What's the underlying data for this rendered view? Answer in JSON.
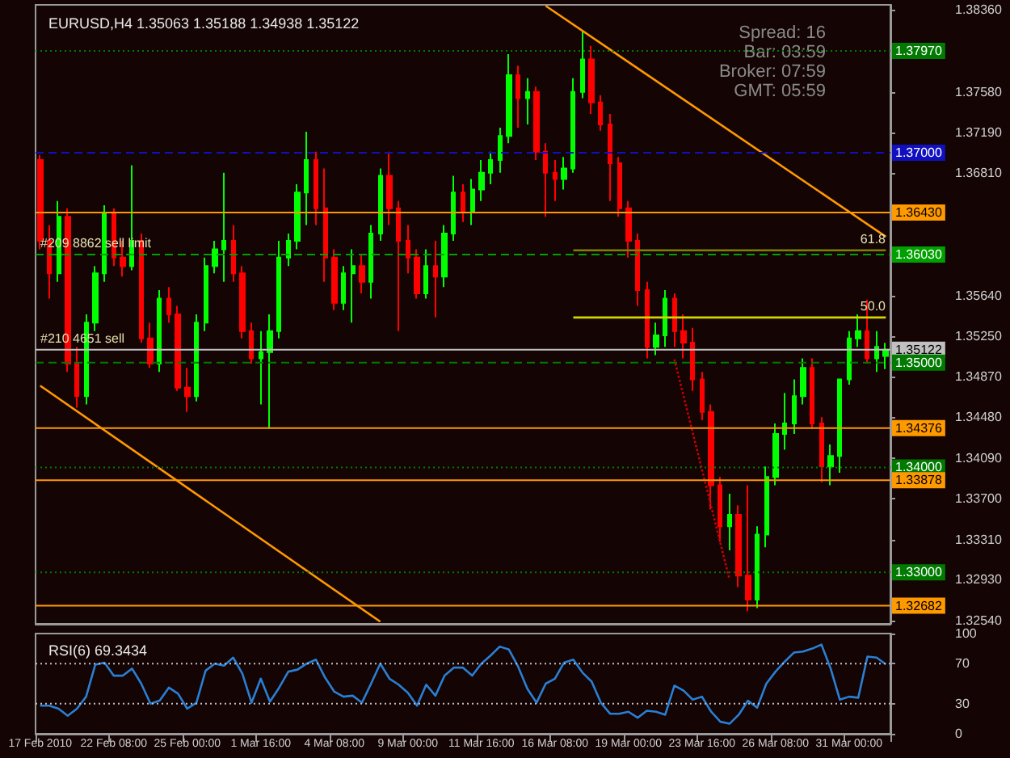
{
  "chart_data": [
    {
      "type": "candlestick",
      "title": "EURUSD,H4 1.35063 1.35188 1.34938 1.35122",
      "categories": [
        "17 Feb 2010",
        null,
        null,
        null,
        null,
        null,
        null,
        null,
        "22 Feb 08:00",
        null,
        null,
        null,
        null,
        null,
        null,
        null,
        "25 Feb 00:00",
        null,
        null,
        null,
        null,
        null,
        null,
        null,
        "1 Mar 16:00",
        null,
        null,
        null,
        null,
        null,
        null,
        null,
        "4 Mar 08:00",
        null,
        null,
        null,
        null,
        null,
        null,
        null,
        "9 Mar 00:00",
        null,
        null,
        null,
        null,
        null,
        null,
        null,
        "11 Mar 16:00",
        null,
        null,
        null,
        null,
        null,
        null,
        null,
        "16 Mar 08:00",
        null,
        null,
        null,
        null,
        null,
        null,
        null,
        "19 Mar 00:00",
        null,
        null,
        null,
        null,
        null,
        null,
        null,
        "23 Mar 16:00",
        null,
        null,
        null,
        null,
        null,
        null,
        null,
        "26 Mar 08:00",
        null,
        null,
        null,
        null,
        null,
        null,
        null,
        "31 Mar 00:00",
        null,
        null,
        null,
        null
      ],
      "ohlc": [
        [
          1.3693,
          1.3698,
          1.3608,
          1.3616
        ],
        [
          1.3616,
          1.3631,
          1.3561,
          1.3585
        ],
        [
          1.3585,
          1.3654,
          1.3577,
          1.3639
        ],
        [
          1.3639,
          1.3647,
          1.3491,
          1.3499
        ],
        [
          1.3499,
          1.3515,
          1.3457,
          1.3468
        ],
        [
          1.3468,
          1.3546,
          1.346,
          1.3538
        ],
        [
          1.3538,
          1.3592,
          1.353,
          1.3585
        ],
        [
          1.3585,
          1.365,
          1.3577,
          1.3642
        ],
        [
          1.3642,
          1.3647,
          1.3592,
          1.36
        ],
        [
          1.36,
          1.3616,
          1.3582,
          1.3592
        ],
        [
          1.3592,
          1.3688,
          1.3588,
          1.3616
        ],
        [
          1.3616,
          1.3623,
          1.3519,
          1.3523
        ],
        [
          1.3523,
          1.3538,
          1.3495,
          1.3499
        ],
        [
          1.3499,
          1.3569,
          1.3491,
          1.3561
        ],
        [
          1.3561,
          1.3572,
          1.3538,
          1.3546
        ],
        [
          1.3546,
          1.3554,
          1.3473,
          1.3476
        ],
        [
          1.3476,
          1.3495,
          1.3453,
          1.3468
        ],
        [
          1.3468,
          1.3546,
          1.3463,
          1.3538
        ],
        [
          1.3538,
          1.36,
          1.353,
          1.3592
        ],
        [
          1.3592,
          1.3616,
          1.3585,
          1.3608
        ],
        [
          1.3608,
          1.3681,
          1.3577,
          1.3616
        ],
        [
          1.3616,
          1.3631,
          1.3577,
          1.3585
        ],
        [
          1.3585,
          1.3592,
          1.3523,
          1.353
        ],
        [
          1.353,
          1.3538,
          1.3499,
          1.3504
        ],
        [
          1.3504,
          1.353,
          1.346,
          1.351
        ],
        [
          1.351,
          1.3546,
          1.3437,
          1.353
        ],
        [
          1.353,
          1.3616,
          1.3523,
          1.36
        ],
        [
          1.36,
          1.3623,
          1.3592,
          1.3616
        ],
        [
          1.3616,
          1.367,
          1.3608,
          1.3662
        ],
        [
          1.3662,
          1.372,
          1.3631,
          1.3693
        ],
        [
          1.3693,
          1.3701,
          1.3631,
          1.3647
        ],
        [
          1.3647,
          1.3685,
          1.3577,
          1.36
        ],
        [
          1.36,
          1.3608,
          1.355,
          1.3557
        ],
        [
          1.3557,
          1.3592,
          1.355,
          1.3585
        ],
        [
          1.3585,
          1.3608,
          1.3538,
          1.3592
        ],
        [
          1.3592,
          1.3603,
          1.3566,
          1.3577
        ],
        [
          1.3577,
          1.3631,
          1.3561,
          1.3623
        ],
        [
          1.3623,
          1.3685,
          1.3616,
          1.3678
        ],
        [
          1.3678,
          1.3701,
          1.3631,
          1.3647
        ],
        [
          1.3647,
          1.3654,
          1.353,
          1.3616
        ],
        [
          1.3616,
          1.3631,
          1.3585,
          1.36
        ],
        [
          1.36,
          1.3608,
          1.3561,
          1.3566
        ],
        [
          1.3566,
          1.3608,
          1.3561,
          1.3592
        ],
        [
          1.3592,
          1.3616,
          1.3543,
          1.3582
        ],
        [
          1.3582,
          1.3631,
          1.3572,
          1.3623
        ],
        [
          1.3623,
          1.3678,
          1.3616,
          1.3662
        ],
        [
          1.3662,
          1.367,
          1.3634,
          1.3644
        ],
        [
          1.3644,
          1.3675,
          1.3631,
          1.3665
        ],
        [
          1.3665,
          1.3693,
          1.3654,
          1.3681
        ],
        [
          1.3681,
          1.3701,
          1.367,
          1.3693
        ],
        [
          1.3693,
          1.3724,
          1.3681,
          1.3716
        ],
        [
          1.3716,
          1.3794,
          1.3709,
          1.3774
        ],
        [
          1.3774,
          1.3783,
          1.3724,
          1.3752
        ],
        [
          1.3752,
          1.3771,
          1.3727,
          1.3758
        ],
        [
          1.3758,
          1.3763,
          1.3693,
          1.3701
        ],
        [
          1.3701,
          1.3709,
          1.3639,
          1.3681
        ],
        [
          1.3681,
          1.3693,
          1.3654,
          1.3675
        ],
        [
          1.3675,
          1.3696,
          1.3665,
          1.3685
        ],
        [
          1.3685,
          1.3771,
          1.3681,
          1.3758
        ],
        [
          1.3758,
          1.3817,
          1.3752,
          1.3789
        ],
        [
          1.3789,
          1.3802,
          1.3737,
          1.3748
        ],
        [
          1.3748,
          1.3755,
          1.3721,
          1.3727
        ],
        [
          1.3727,
          1.3737,
          1.3654,
          1.369
        ],
        [
          1.369,
          1.3696,
          1.3639,
          1.3647
        ],
        [
          1.3647,
          1.3654,
          1.36,
          1.3616
        ],
        [
          1.3616,
          1.3623,
          1.3554,
          1.3569
        ],
        [
          1.3569,
          1.3577,
          1.3504,
          1.3515
        ],
        [
          1.3515,
          1.3538,
          1.3507,
          1.3526
        ],
        [
          1.3526,
          1.3569,
          1.3515,
          1.3561
        ],
        [
          1.3561,
          1.3566,
          1.3515,
          1.353
        ],
        [
          1.353,
          1.3546,
          1.3504,
          1.3519
        ],
        [
          1.3519,
          1.3533,
          1.3473,
          1.3484
        ],
        [
          1.3484,
          1.3491,
          1.3445,
          1.3453
        ],
        [
          1.3453,
          1.346,
          1.336,
          1.3383
        ],
        [
          1.3383,
          1.3391,
          1.3329,
          1.3344
        ],
        [
          1.3344,
          1.3375,
          1.3321,
          1.3355
        ],
        [
          1.3355,
          1.3364,
          1.3286,
          1.3297
        ],
        [
          1.3297,
          1.3383,
          1.3263,
          1.3274
        ],
        [
          1.3274,
          1.3344,
          1.3266,
          1.3336
        ],
        [
          1.3336,
          1.3401,
          1.3324,
          1.3391
        ],
        [
          1.3391,
          1.3442,
          1.3383,
          1.3432
        ],
        [
          1.3432,
          1.3471,
          1.3417,
          1.3442
        ],
        [
          1.3442,
          1.3484,
          1.3432,
          1.3468
        ],
        [
          1.3468,
          1.3504,
          1.346,
          1.3495
        ],
        [
          1.3495,
          1.3504,
          1.3437,
          1.3442
        ],
        [
          1.3442,
          1.3448,
          1.3386,
          1.3401
        ],
        [
          1.3401,
          1.3422,
          1.3383,
          1.3411
        ],
        [
          1.3411,
          1.3484,
          1.3395,
          1.3484
        ],
        [
          1.3484,
          1.353,
          1.3479,
          1.3523
        ],
        [
          1.3523,
          1.3546,
          1.3515,
          1.353
        ],
        [
          1.353,
          1.356,
          1.3499,
          1.3504
        ],
        [
          1.3504,
          1.353,
          1.3491,
          1.3515
        ],
        [
          1.35063,
          1.35188,
          1.34938,
          1.35122
        ]
      ],
      "colors": [
        "#ff0000",
        "#ff0000",
        "#00ff00",
        "#ff0000",
        "#ff0000",
        "#00ff00",
        "#00ff00",
        "#00ff00",
        "#ff0000",
        "#ff0000",
        "#00ff00",
        "#ff0000",
        "#ff0000",
        "#00ff00",
        "#ff0000",
        "#ff0000",
        "#ff0000",
        "#00ff00",
        "#00ff00",
        "#00ff00",
        "#00ff00",
        "#ff0000",
        "#ff0000",
        "#ff0000",
        "#00ff00",
        "#00ff00",
        "#00ff00",
        "#00ff00",
        "#00ff00",
        "#00ff00",
        "#ff0000",
        "#ff0000",
        "#ff0000",
        "#00ff00",
        "#00ff00",
        "#ff0000",
        "#00ff00",
        "#00ff00",
        "#ff0000",
        "#ff0000",
        "#ff0000",
        "#ff0000",
        "#00ff00",
        "#ff0000",
        "#00ff00",
        "#00ff00",
        "#ff0000",
        "#00ff00",
        "#00ff00",
        "#00ff00",
        "#00ff00",
        "#00ff00",
        "#ff0000",
        "#00ff00",
        "#ff0000",
        "#ff0000",
        "#ff0000",
        "#00ff00",
        "#00ff00",
        "#00ff00",
        "#ff0000",
        "#ff0000",
        "#ff0000",
        "#ff0000",
        "#ff0000",
        "#ff0000",
        "#ff0000",
        "#00ff00",
        "#00ff00",
        "#ff0000",
        "#ff0000",
        "#ff0000",
        "#ff0000",
        "#ff0000",
        "#ff0000",
        "#00ff00",
        "#ff0000",
        "#ff0000",
        "#00ff00",
        "#00ff00",
        "#00ff00",
        "#00ff00",
        "#00ff00",
        "#00ff00",
        "#ff0000",
        "#ff0000",
        "#00ff00",
        "#00ff00",
        "#00ff00",
        "#00ff00",
        "#ff0000",
        "#00ff00",
        "#00ff00"
      ],
      "series": [
        {
          "type": "line",
          "color": "#ff9900",
          "values": [
            null,
            null,
            null,
            null,
            null,
            null,
            null,
            null,
            null,
            null,
            null,
            null,
            null,
            null,
            null,
            null,
            null,
            null,
            null,
            null,
            null,
            null,
            null,
            null,
            null,
            null,
            null,
            null,
            null,
            null,
            null,
            null,
            null,
            null,
            null,
            null,
            null,
            null,
            null,
            null,
            null,
            null,
            null,
            null,
            null,
            null,
            null,
            null,
            null,
            null,
            null,
            null,
            null,
            null,
            null,
            1.384,
            null,
            null,
            null,
            null,
            null,
            null,
            null,
            null,
            null,
            null,
            null,
            null,
            null,
            null,
            null,
            null,
            null,
            null,
            null,
            null,
            null,
            null,
            null,
            null,
            null,
            null,
            null,
            null,
            null,
            null,
            null,
            null,
            null,
            null,
            null,
            null,
            1.362
          ]
        },
        {
          "type": "line",
          "color": "#ff9900",
          "values": [
            1.3478,
            null,
            null,
            null,
            null,
            null,
            null,
            null,
            null,
            null,
            null,
            null,
            null,
            null,
            null,
            null,
            null,
            null,
            null,
            null,
            null,
            null,
            null,
            null,
            null,
            null,
            null,
            null,
            null,
            null,
            null,
            null,
            null,
            null,
            null,
            null,
            null,
            1.3253,
            null,
            null,
            null,
            null,
            null,
            null,
            null,
            null,
            null,
            null,
            null,
            null,
            null,
            null,
            null,
            null,
            null,
            null,
            null,
            null,
            null,
            null,
            null,
            null,
            null,
            null,
            null,
            null,
            null,
            null,
            null,
            null,
            null,
            null,
            null,
            null,
            null,
            null,
            null,
            null,
            null,
            null,
            null,
            null,
            null,
            null,
            null,
            null,
            null,
            null,
            null,
            null,
            null,
            null,
            null
          ]
        },
        {
          "type": "line",
          "color": "#cc0000",
          "line_style": "dotted",
          "values": [
            null,
            null,
            null,
            null,
            null,
            null,
            null,
            null,
            null,
            null,
            null,
            null,
            null,
            null,
            null,
            null,
            null,
            null,
            null,
            null,
            null,
            null,
            null,
            null,
            null,
            null,
            null,
            null,
            null,
            null,
            null,
            null,
            null,
            null,
            null,
            null,
            null,
            null,
            null,
            null,
            null,
            null,
            null,
            null,
            null,
            null,
            null,
            null,
            null,
            null,
            null,
            null,
            null,
            null,
            null,
            null,
            null,
            null,
            null,
            null,
            null,
            null,
            null,
            null,
            null,
            null,
            null,
            null,
            null,
            1.3503,
            null,
            null,
            null,
            null,
            null,
            1.3293,
            null,
            null,
            null,
            null,
            null,
            null,
            null,
            null,
            null,
            null,
            null,
            null,
            null,
            null,
            null,
            null,
            null
          ]
        },
        {
          "type": "line",
          "color": "#808000",
          "values": [
            null,
            null,
            null,
            null,
            null,
            null,
            null,
            null,
            null,
            null,
            null,
            null,
            null,
            null,
            null,
            null,
            null,
            null,
            null,
            null,
            null,
            null,
            null,
            null,
            null,
            null,
            null,
            null,
            null,
            null,
            null,
            null,
            null,
            null,
            null,
            null,
            null,
            null,
            null,
            null,
            null,
            null,
            null,
            null,
            null,
            null,
            null,
            null,
            null,
            null,
            null,
            null,
            null,
            null,
            null,
            null,
            null,
            null,
            1.3607,
            null,
            null,
            null,
            null,
            null,
            null,
            null,
            null,
            null,
            null,
            null,
            null,
            null,
            null,
            null,
            null,
            null,
            null,
            null,
            null,
            null,
            null,
            null,
            null,
            null,
            null,
            null,
            null,
            null,
            null,
            null,
            null,
            null,
            1.3607
          ]
        },
        {
          "type": "line",
          "color": "#d4d400",
          "values": [
            null,
            null,
            null,
            null,
            null,
            null,
            null,
            null,
            null,
            null,
            null,
            null,
            null,
            null,
            null,
            null,
            null,
            null,
            null,
            null,
            null,
            null,
            null,
            null,
            null,
            null,
            null,
            null,
            null,
            null,
            null,
            null,
            null,
            null,
            null,
            null,
            null,
            null,
            null,
            null,
            null,
            null,
            null,
            null,
            null,
            null,
            null,
            null,
            null,
            null,
            null,
            null,
            null,
            null,
            null,
            null,
            null,
            null,
            1.3543,
            null,
            null,
            null,
            null,
            null,
            null,
            null,
            null,
            null,
            null,
            null,
            null,
            null,
            null,
            null,
            null,
            null,
            null,
            null,
            null,
            null,
            null,
            null,
            null,
            null,
            null,
            null,
            null,
            null,
            null,
            null,
            null,
            null,
            1.3543
          ]
        }
      ],
      "ylim": [
        1.3251,
        1.3841
      ],
      "yticks": [
        {
          "value": 1.3836,
          "label": "1.38360"
        },
        {
          "value": 1.3758,
          "label": "1.37580"
        },
        {
          "value": 1.3719,
          "label": "1.37190"
        },
        {
          "value": 1.3681,
          "label": "1.36810"
        },
        {
          "value": 1.3564,
          "label": "1.35640"
        },
        {
          "value": 1.3525,
          "label": "1.35250"
        },
        {
          "value": 1.3487,
          "label": "1.34870"
        },
        {
          "value": 1.3448,
          "label": "1.34480"
        },
        {
          "value": 1.3409,
          "label": "1.34090"
        },
        {
          "value": 1.337,
          "label": "1.33700"
        },
        {
          "value": 1.3331,
          "label": "1.33310"
        },
        {
          "value": 1.3293,
          "label": "1.32930"
        },
        {
          "value": 1.3254,
          "label": "1.32540"
        }
      ],
      "ref_lines": [
        {
          "axis": "y",
          "value": 1.3797,
          "label": "1.37970",
          "color": "#007a00",
          "line_style": "dotted"
        },
        {
          "axis": "y",
          "value": 1.37,
          "label": "1.37000",
          "color": "#1010c0",
          "line_style": "dashed"
        },
        {
          "axis": "y",
          "value": 1.3643,
          "label": "1.36430",
          "color": "#ff9900",
          "line_style": "solid"
        },
        {
          "axis": "y",
          "value": 1.3603,
          "label": "1.36030",
          "color": "#00a000",
          "line_style": "dashed"
        },
        {
          "axis": "y",
          "value": 1.35122,
          "label": "1.35122",
          "color": "#c0c0c0",
          "line_style": "solid"
        },
        {
          "axis": "y",
          "value": 1.35,
          "label": "1.35000",
          "color": "#007a00",
          "line_style": "dashed"
        },
        {
          "axis": "y",
          "value": 1.34376,
          "label": "1.34376",
          "color": "#ff9900",
          "line_style": "solid"
        },
        {
          "axis": "y",
          "value": 1.34,
          "label": "1.34000",
          "color": "#007a00",
          "line_style": "dotted"
        },
        {
          "axis": "y",
          "value": 1.33878,
          "label": "1.33878",
          "color": "#ff9900",
          "line_style": "solid"
        },
        {
          "axis": "y",
          "value": 1.33,
          "label": "1.33000",
          "color": "#007a00",
          "line_style": "dotted"
        },
        {
          "axis": "y",
          "value": 1.32682,
          "label": "1.32682",
          "color": "#ff9900",
          "line_style": "solid"
        }
      ],
      "annotations": [
        "Spread: 16",
        "Bar: 03:59",
        "Broker: 07:59",
        "GMT: 05:59",
        {
          "text": "#209 8862 sell limit",
          "x": "17 Feb 2010",
          "y": 1.3603
        },
        {
          "text": "#210 4651 sell",
          "x": "17 Feb 2010",
          "y": 1.35122
        },
        {
          "text": "61.8",
          "x": "31 Mar 00:00",
          "y": 1.3607
        },
        {
          "text": "50.0",
          "x": "31 Mar 00:00",
          "y": 1.3543
        }
      ],
      "tick_labels": "y"
    },
    {
      "type": "line",
      "title": "RSI(6) 69.3434",
      "color": "#2a7fd4",
      "categories": [
        "17 Feb 2010",
        null,
        null,
        null,
        null,
        null,
        null,
        null,
        "22 Feb 08:00",
        null,
        null,
        null,
        null,
        null,
        null,
        null,
        "25 Feb 00:00",
        null,
        null,
        null,
        null,
        null,
        null,
        null,
        "1 Mar 16:00",
        null,
        null,
        null,
        null,
        null,
        null,
        null,
        "4 Mar 08:00",
        null,
        null,
        null,
        null,
        null,
        null,
        null,
        "9 Mar 00:00",
        null,
        null,
        null,
        null,
        null,
        null,
        null,
        "11 Mar 16:00",
        null,
        null,
        null,
        null,
        null,
        null,
        null,
        "16 Mar 08:00",
        null,
        null,
        null,
        null,
        null,
        null,
        null,
        "19 Mar 00:00",
        null,
        null,
        null,
        null,
        null,
        null,
        null,
        "23 Mar 16:00",
        null,
        null,
        null,
        null,
        null,
        null,
        null,
        "26 Mar 08:00",
        null,
        null,
        null,
        null,
        null,
        null,
        null,
        "31 Mar 00:00",
        null,
        null,
        null,
        null
      ],
      "values": [
        28,
        28,
        25,
        18,
        25,
        37,
        69,
        71,
        58,
        58,
        65,
        50,
        30,
        33,
        46,
        40,
        25,
        31,
        63,
        70,
        68,
        76,
        60,
        31,
        55,
        32,
        46,
        62,
        64,
        70,
        74,
        56,
        42,
        37,
        38,
        31,
        50,
        70,
        55,
        49,
        41,
        28,
        49,
        38,
        58,
        66,
        66,
        58,
        70,
        78,
        87,
        84,
        67,
        45,
        31,
        50,
        55,
        71,
        74,
        61,
        52,
        31,
        20,
        20,
        22,
        16,
        23,
        22,
        19,
        48,
        43,
        34,
        37,
        22,
        12,
        10,
        19,
        33,
        26,
        50,
        62,
        72,
        81,
        82,
        85,
        89,
        65,
        34,
        37,
        36,
        77,
        76,
        69.3434
      ],
      "ylim": [
        0,
        100
      ],
      "yticks": [
        0,
        30,
        70,
        100
      ],
      "ref_lines": [
        {
          "axis": "y",
          "value": 30,
          "color": "#c0c0c0",
          "line_style": "dotted"
        },
        {
          "axis": "y",
          "value": 70,
          "color": "#c0c0c0",
          "line_style": "dotted"
        }
      ]
    }
  ]
}
